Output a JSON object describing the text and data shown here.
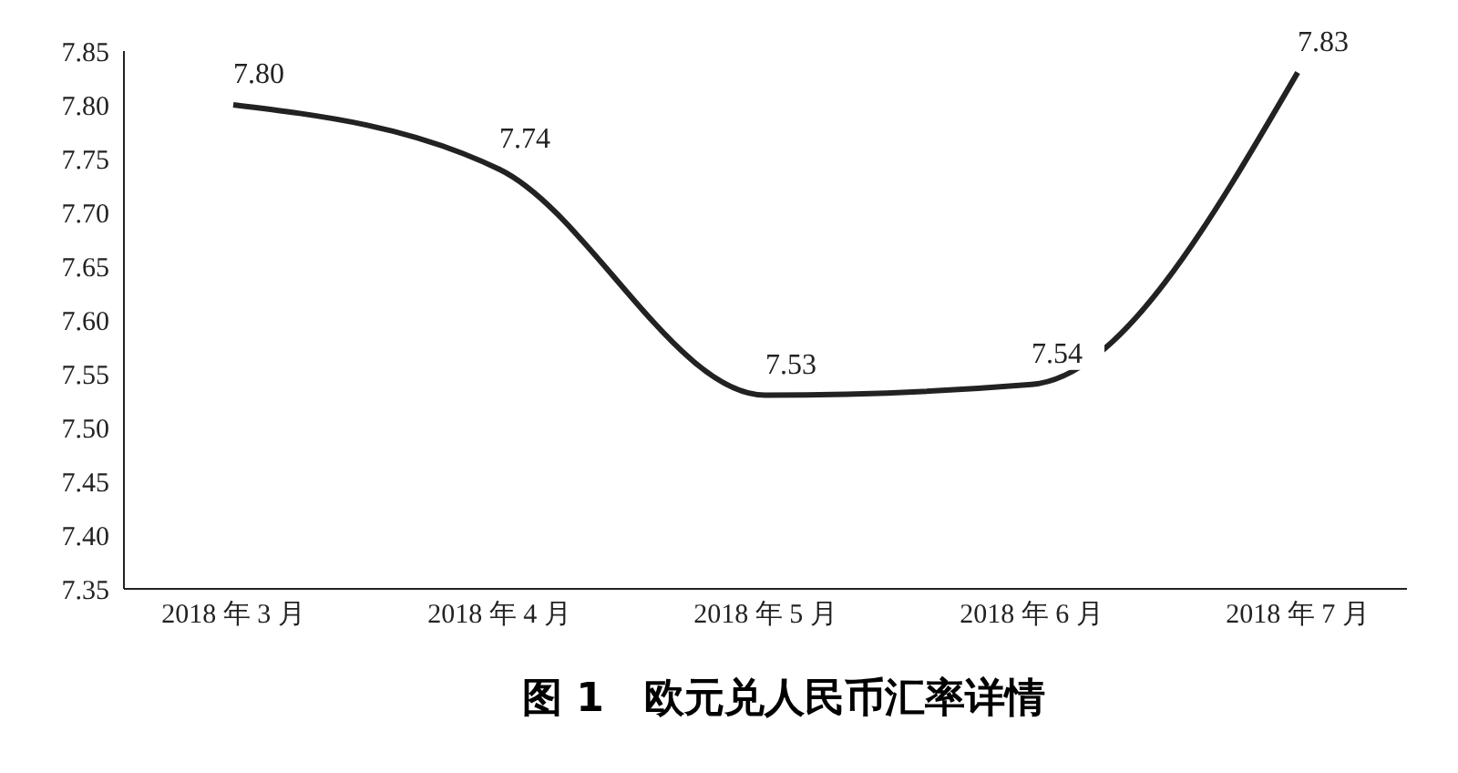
{
  "chart_data": {
    "type": "line",
    "title": "图 1　欧元兑人民币汇率详情",
    "categories": [
      "2018 年 3 月",
      "2018 年 4 月",
      "2018 年 5 月",
      "2018 年 6 月",
      "2018 年 7 月"
    ],
    "series": [
      {
        "color": "#222222",
        "values": [
          7.8,
          7.74,
          7.53,
          7.54,
          7.83
        ],
        "value_labels": [
          "7.80",
          "7.74",
          "7.53",
          "7.54",
          "7.83"
        ]
      }
    ],
    "ylim": [
      7.35,
      7.85
    ],
    "yticks": [
      {
        "value": 7.35,
        "label": "7.35"
      },
      {
        "value": 7.4,
        "label": "7.40"
      },
      {
        "value": 7.45,
        "label": "7.45"
      },
      {
        "value": 7.5,
        "label": "7.50"
      },
      {
        "value": 7.55,
        "label": "7.55"
      },
      {
        "value": 7.6,
        "label": "7.60"
      },
      {
        "value": 7.65,
        "label": "7.65"
      },
      {
        "value": 7.7,
        "label": "7.70"
      },
      {
        "value": 7.75,
        "label": "7.75"
      },
      {
        "value": 7.8,
        "label": "7.80"
      },
      {
        "value": 7.85,
        "label": "7.85"
      }
    ],
    "grid": false,
    "legend": false,
    "marker": "none",
    "line_style": "solid"
  }
}
